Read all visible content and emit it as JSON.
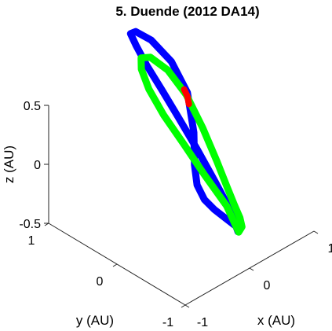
{
  "chart_data": {
    "type": "line",
    "title": "5. Duende (2012 DA14)",
    "xlabel": "x (AU)",
    "ylabel": "y (AU)",
    "zlabel": "z (AU)",
    "x_ticks": [
      "-1",
      "0",
      "1"
    ],
    "y_ticks": [
      "-1",
      "0",
      "1"
    ],
    "z_ticks": [
      "-0.5",
      "0",
      "0.5"
    ],
    "xlim": [
      -1,
      1
    ],
    "ylim": [
      -1,
      1
    ],
    "zlim": [
      -0.5,
      0.5
    ],
    "grid": false,
    "series": [
      {
        "color": "#0000ff",
        "x": [
          0.0,
          0.14,
          0.26,
          0.36,
          0.45,
          0.55,
          0.67,
          0.82,
          0.98,
          1.05,
          0.96,
          0.74,
          0.48,
          0.24,
          0.05,
          -0.1,
          -0.19,
          -0.22,
          -0.2,
          -0.13,
          -0.05,
          0.0
        ],
        "y": [
          -0.83,
          -0.73,
          -0.55,
          -0.31,
          -0.06,
          0.18,
          0.4,
          0.58,
          0.74,
          0.9,
          1.05,
          1.14,
          1.12,
          0.97,
          0.71,
          0.41,
          0.11,
          -0.16,
          -0.42,
          -0.62,
          -0.76,
          -0.83
        ],
        "z": [
          -0.25,
          -0.31,
          -0.38,
          -0.43,
          -0.47,
          -0.5,
          -0.49,
          -0.43,
          -0.26,
          0.0,
          0.24,
          0.46,
          0.62,
          0.73,
          0.78,
          0.76,
          0.69,
          0.56,
          0.37,
          0.14,
          -0.07,
          -0.25
        ]
      },
      {
        "color": "#00ff00",
        "x": [
          0.0,
          0.19,
          0.37,
          0.54,
          0.71,
          0.86,
          0.97,
          0.98,
          0.85,
          0.6,
          0.33,
          0.09,
          -0.1,
          -0.2,
          -0.22,
          -0.17,
          -0.06,
          0.0
        ],
        "y": [
          -0.84,
          -0.71,
          -0.51,
          -0.27,
          0.0,
          0.29,
          0.6,
          0.85,
          1.0,
          1.02,
          0.9,
          0.67,
          0.38,
          0.07,
          -0.24,
          -0.5,
          -0.72,
          -0.84
        ],
        "z": [
          -0.25,
          -0.31,
          -0.36,
          -0.39,
          -0.38,
          -0.31,
          -0.17,
          0.02,
          0.22,
          0.4,
          0.52,
          0.58,
          0.57,
          0.49,
          0.36,
          0.17,
          -0.05,
          -0.25
        ]
      },
      {
        "color": "#ff0000",
        "x": [
          1.02,
          1.03,
          1.02
        ],
        "y": [
          0.85,
          0.88,
          0.92
        ],
        "z": [
          -0.07,
          -0.02,
          0.03
        ]
      }
    ]
  }
}
